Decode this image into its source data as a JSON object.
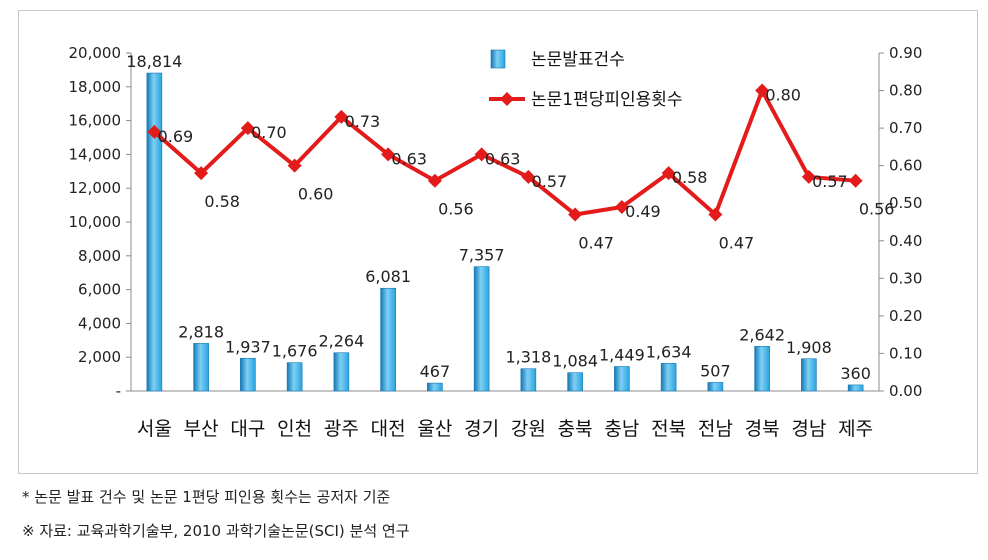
{
  "chart_data": {
    "type": "bar",
    "categories": [
      "서울",
      "부산",
      "대구",
      "인천",
      "광주",
      "대전",
      "울산",
      "경기",
      "강원",
      "충북",
      "충남",
      "전북",
      "전남",
      "경북",
      "경남",
      "제주"
    ],
    "series": [
      {
        "name": "논문발표건수",
        "kind": "bar",
        "axis": "left",
        "values": [
          18814,
          2818,
          1937,
          1676,
          2264,
          6081,
          467,
          7357,
          1318,
          1084,
          1449,
          1634,
          507,
          2642,
          1908,
          360
        ],
        "value_labels": [
          "18,814",
          "2,818",
          "1,937",
          "1,676",
          "2,264",
          "6,081",
          "467",
          "7,357",
          "1,318",
          "1,084",
          "1,449",
          "1,634",
          "507",
          "2,642",
          "1,908",
          "360"
        ]
      },
      {
        "name": "논문1편당피인용횟수",
        "kind": "line",
        "axis": "right",
        "values": [
          0.69,
          0.58,
          0.7,
          0.6,
          0.73,
          0.63,
          0.56,
          0.63,
          0.57,
          0.47,
          0.49,
          0.58,
          0.47,
          0.8,
          0.57,
          0.56
        ],
        "value_labels": [
          "0.69",
          "0.58",
          "0.70",
          "0.60",
          "0.73",
          "0.63",
          "0.56",
          "0.63",
          "0.57",
          "0.47",
          "0.49",
          "0.58",
          "0.47",
          "0.80",
          "0.57",
          "0.56"
        ]
      }
    ],
    "y_left": {
      "range": [
        0,
        20000
      ],
      "ticks": [
        "-",
        "2,000",
        "4,000",
        "6,000",
        "8,000",
        "10,000",
        "12,000",
        "14,000",
        "16,000",
        "18,000",
        "20,000"
      ]
    },
    "y_right": {
      "range": [
        0,
        0.9
      ],
      "ticks": [
        "0.00",
        "0.10",
        "0.20",
        "0.30",
        "0.40",
        "0.50",
        "0.60",
        "0.70",
        "0.80",
        "0.90"
      ]
    },
    "legend": "top-center",
    "grid": false,
    "colors": {
      "bar": "#29a3dd",
      "bar_dark": "#1478b4",
      "line": "#e31b1b"
    }
  },
  "notes": [
    "* 논문 발표 건수 및 논문 1편당 피인용 횟수는 공저자 기준",
    "※ 자료: 교육과학기술부, 2010 과학기술논문(SCI) 분석 연구"
  ]
}
